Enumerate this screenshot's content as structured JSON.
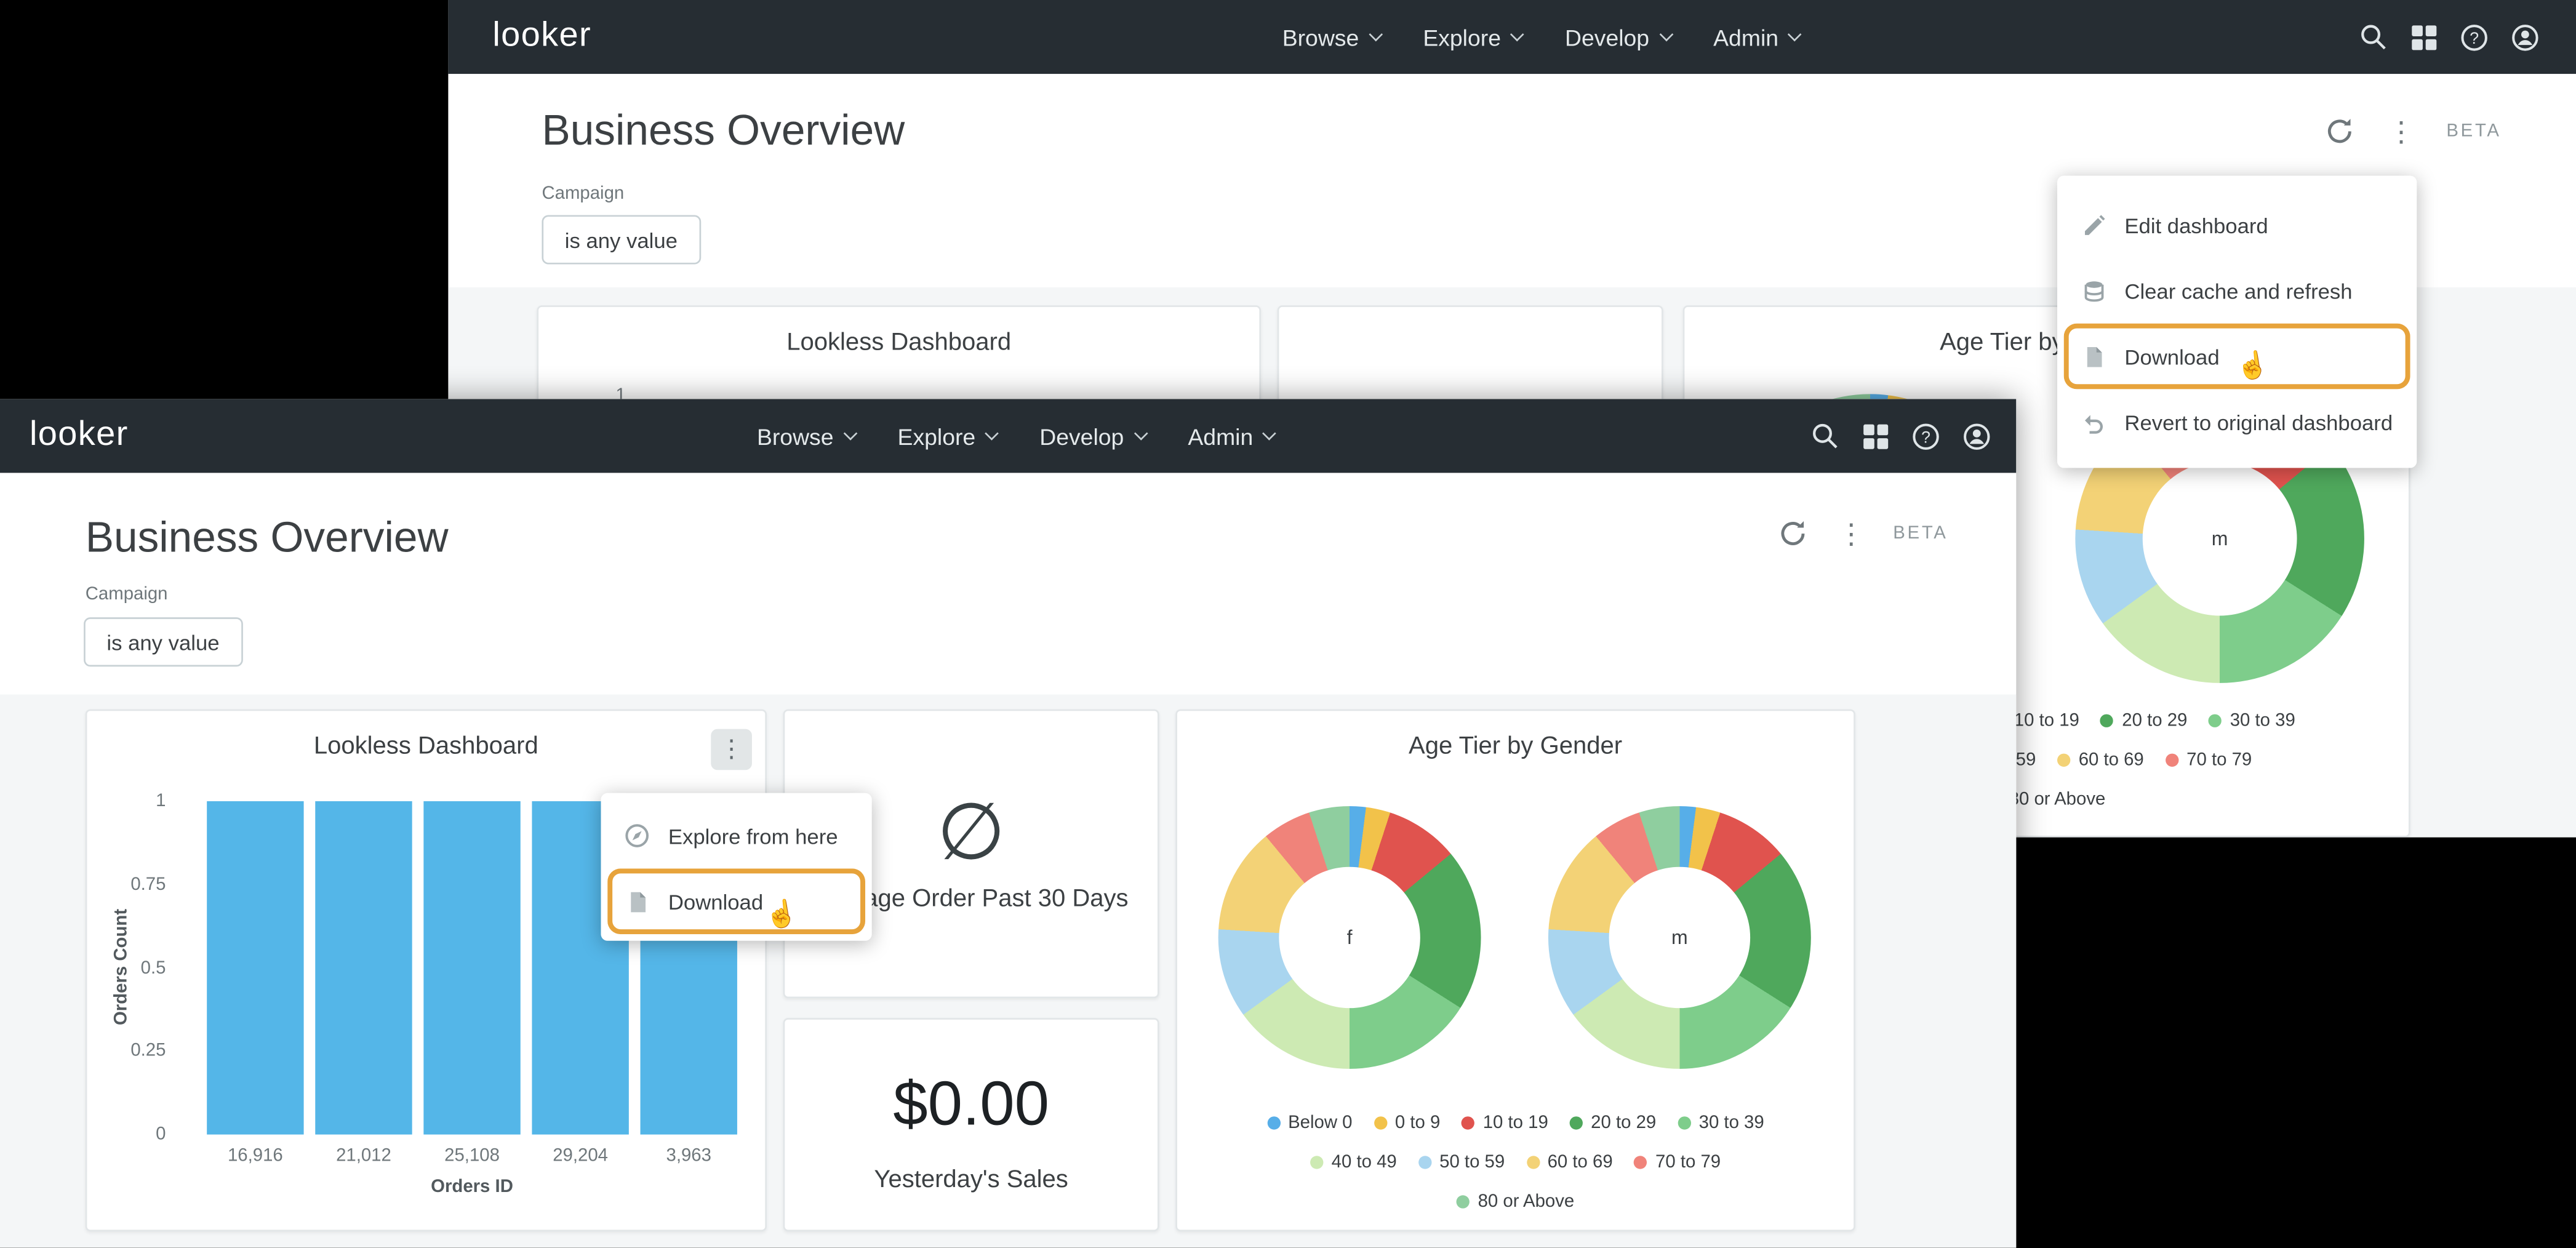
{
  "brand": {
    "logo_text": "looker"
  },
  "nav": {
    "items": [
      {
        "label": "Browse"
      },
      {
        "label": "Explore"
      },
      {
        "label": "Develop"
      },
      {
        "label": "Admin"
      }
    ],
    "icons": [
      "search-icon",
      "apps-icon",
      "help-icon",
      "account-icon"
    ]
  },
  "header": {
    "title": "Business Overview",
    "beta_label": "BETA"
  },
  "filter": {
    "label": "Campaign",
    "value": "is any value"
  },
  "colors": {
    "navbar_bg": "#262d33",
    "accent_orange": "#e7a33b",
    "bar_blue": "#54b6e8"
  },
  "window_a": {
    "menu": {
      "items": [
        {
          "icon": "pencil-icon",
          "label": "Edit dashboard"
        },
        {
          "icon": "cache-icon",
          "label": "Clear cache and refresh"
        },
        {
          "icon": "file-icon",
          "label": "Download",
          "highlighted": true
        },
        {
          "icon": "undo-icon",
          "label": "Revert to original dashboard"
        }
      ]
    },
    "lookless_tile": {
      "title": "Lookless Dashboard",
      "visible_tick": "1"
    },
    "age_tile": {
      "title": "Age Tier by Gender"
    }
  },
  "window_b": {
    "lookless_tile": {
      "title": "Lookless Dashboard"
    },
    "menu": {
      "items": [
        {
          "icon": "explore-icon",
          "label": "Explore from here"
        },
        {
          "icon": "file-icon",
          "label": "Download",
          "highlighted": true
        }
      ]
    },
    "avg_order_tile": {
      "null_symbol": "∅",
      "label": "Average Order Past 30 Days"
    },
    "sales_tile": {
      "value": "$0.00",
      "label": "Yesterday's Sales"
    },
    "age_tile": {
      "title": "Age Tier by Gender"
    }
  },
  "cursor": {
    "glyph": "☝"
  },
  "chart_data": [
    {
      "type": "bar",
      "title": "Lookless Dashboard",
      "categories": [
        "16,916",
        "21,012",
        "25,108",
        "29,204",
        "3,963"
      ],
      "values": [
        1,
        1,
        1,
        1,
        1
      ],
      "xlabel": "Orders ID",
      "ylabel": "Orders Count",
      "yticks": [
        "1",
        "0.75",
        "0.5",
        "0.25",
        "0"
      ],
      "ylim": [
        0,
        1
      ],
      "bar_color": "#54b6e8",
      "grid": false
    },
    {
      "type": "pie",
      "title": "Age Tier by Gender",
      "center_labels": [
        "f",
        "m"
      ],
      "rotate_deg": -18,
      "segments": [
        {
          "label": "80 or Above",
          "color": "#8fce9f",
          "value": 5
        },
        {
          "label": "Below 0",
          "color": "#57aee8",
          "value": 2
        },
        {
          "label": "0 to 9",
          "color": "#f2c24a",
          "value": 3
        },
        {
          "label": "10 to 19",
          "color": "#e0534e",
          "value": 9
        },
        {
          "label": "20 to 29",
          "color": "#4fa85c",
          "value": 20
        },
        {
          "label": "30 to 39",
          "color": "#7ecd8b",
          "value": 16
        },
        {
          "label": "40 to 49",
          "color": "#cdeab3",
          "value": 15
        },
        {
          "label": "50 to 59",
          "color": "#a9d5ef",
          "value": 11
        },
        {
          "label": "60 to 69",
          "color": "#f3d276",
          "value": 13
        },
        {
          "label": "70 to 79",
          "color": "#f0837a",
          "value": 6
        }
      ],
      "legend_rows": [
        [
          {
            "label": "Below 0",
            "color": "#57aee8"
          },
          {
            "label": "0 to 9",
            "color": "#f2c24a"
          },
          {
            "label": "10 to 19",
            "color": "#e0534e"
          },
          {
            "label": "20 to 29",
            "color": "#4fa85c"
          },
          {
            "label": "30 to 39",
            "color": "#7ecd8b"
          }
        ],
        [
          {
            "label": "40 to 49",
            "color": "#cdeab3"
          },
          {
            "label": "50 to 59",
            "color": "#a9d5ef"
          },
          {
            "label": "60 to 69",
            "color": "#f3d276"
          },
          {
            "label": "70 to 79",
            "color": "#f0837a"
          }
        ],
        [
          {
            "label": "80 or Above",
            "color": "#8fce9f"
          }
        ]
      ],
      "legend_position": "bottom"
    }
  ]
}
